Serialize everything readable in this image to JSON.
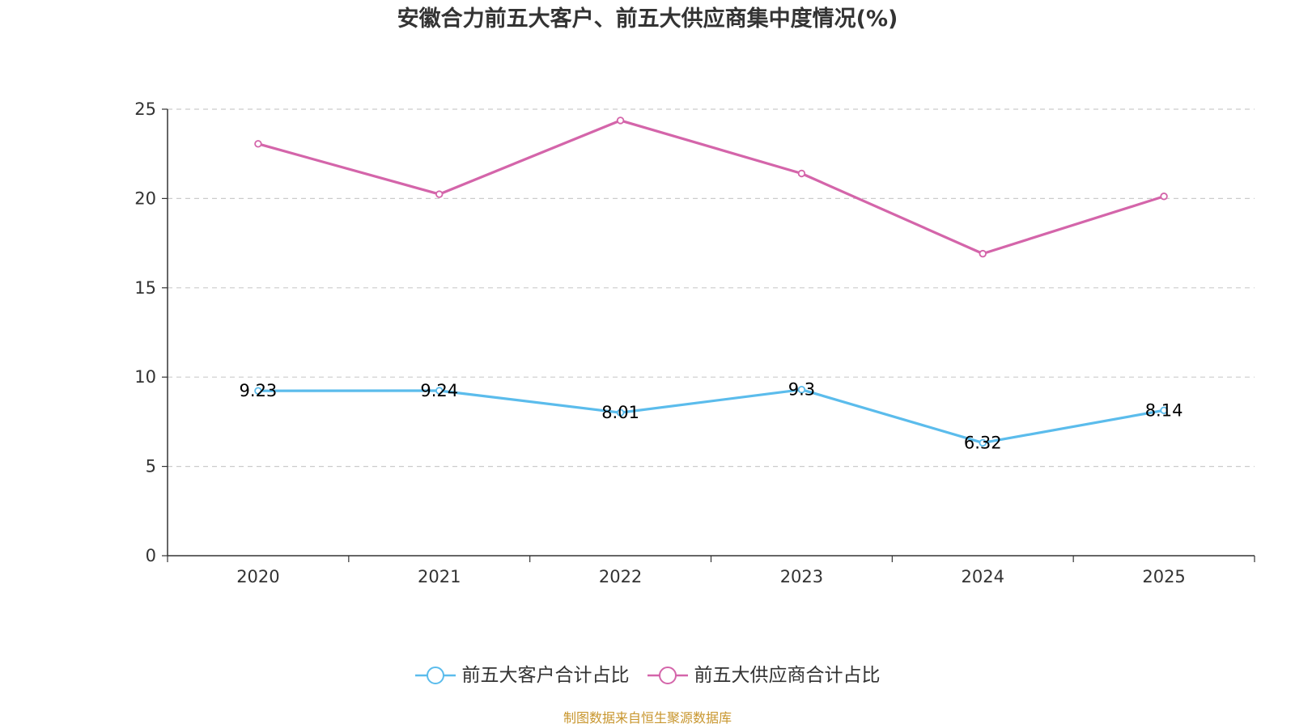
{
  "chart_data": {
    "type": "line",
    "title": "安徽合力前五大客户、前五大供应商集中度情况(%)",
    "categories": [
      "2020",
      "2021",
      "2022",
      "2023",
      "2024",
      "2025"
    ],
    "series": [
      {
        "name": "前五大客户合计占比",
        "color": "#5bbcec",
        "values": [
          9.23,
          9.24,
          8.01,
          9.3,
          6.32,
          8.14
        ],
        "labels": [
          "9.23",
          "9.24",
          "8.01",
          "9.3",
          "6.32",
          "8.14"
        ],
        "show_labels": true
      },
      {
        "name": "前五大供应商合计占比",
        "color": "#d465aa",
        "values": [
          23.06,
          20.24,
          24.37,
          21.4,
          16.91,
          20.12
        ],
        "show_labels": false
      }
    ],
    "ylim": [
      0,
      25
    ],
    "yticks": [
      0,
      5,
      10,
      15,
      20,
      25
    ],
    "ytick_labels": [
      "0",
      "5",
      "10",
      "15",
      "20",
      "25"
    ],
    "grid": true,
    "legend_position": "bottom-center",
    "xlabel": "",
    "ylabel": ""
  },
  "source": "制图数据来自恒生聚源数据库"
}
